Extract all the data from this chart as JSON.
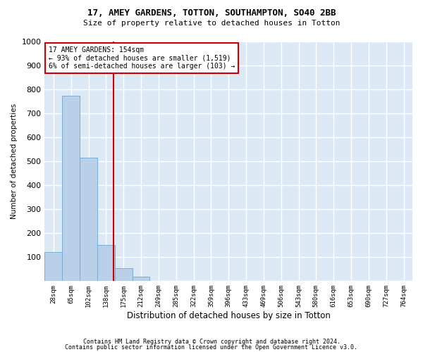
{
  "title": "17, AMEY GARDENS, TOTTON, SOUTHAMPTON, SO40 2BB",
  "subtitle": "Size of property relative to detached houses in Totton",
  "xlabel": "Distribution of detached houses by size in Totton",
  "ylabel": "Number of detached properties",
  "footnote1": "Contains HM Land Registry data © Crown copyright and database right 2024.",
  "footnote2": "Contains public sector information licensed under the Open Government Licence v3.0.",
  "bins": [
    "28sqm",
    "65sqm",
    "102sqm",
    "138sqm",
    "175sqm",
    "212sqm",
    "249sqm",
    "285sqm",
    "322sqm",
    "359sqm",
    "396sqm",
    "433sqm",
    "469sqm",
    "506sqm",
    "543sqm",
    "580sqm",
    "616sqm",
    "653sqm",
    "690sqm",
    "727sqm",
    "764sqm"
  ],
  "bar_values": [
    120,
    775,
    515,
    150,
    55,
    20,
    0,
    0,
    0,
    0,
    0,
    0,
    0,
    0,
    0,
    0,
    0,
    0,
    0,
    0,
    0
  ],
  "bar_color": "#b8d0e8",
  "bar_edgecolor": "#7aadd4",
  "background_color": "#dce9f5",
  "grid_color": "#ffffff",
  "vline_bin": 3.7,
  "vline_color": "#cc0000",
  "annotation_text": "17 AMEY GARDENS: 154sqm\n← 93% of detached houses are smaller (1,519)\n6% of semi-detached houses are larger (103) →",
  "annotation_box_facecolor": "#ffffff",
  "annotation_box_edgecolor": "#cc0000",
  "ylim": [
    0,
    1000
  ],
  "yticks": [
    0,
    100,
    200,
    300,
    400,
    500,
    600,
    700,
    800,
    900,
    1000
  ]
}
